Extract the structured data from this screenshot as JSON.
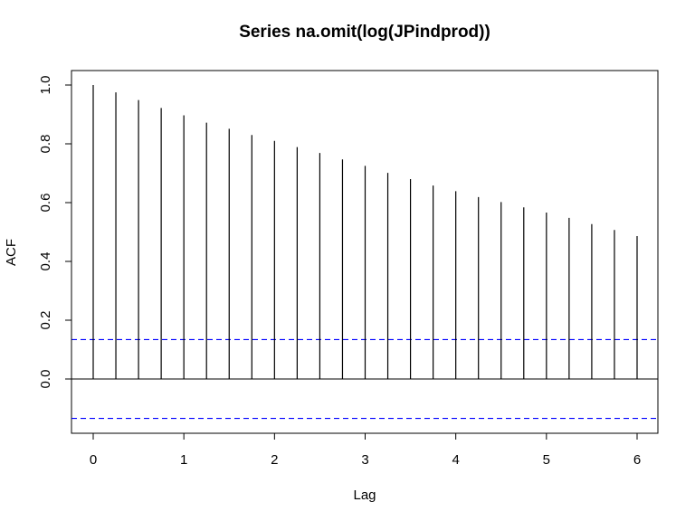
{
  "chart_data": {
    "type": "bar",
    "title": "Series  na.omit(log(JPindprod))",
    "xlabel": "Lag",
    "ylabel": "ACF",
    "xlim": [
      0,
      6
    ],
    "ylim": [
      -0.13,
      1.0
    ],
    "x_ticks": [
      "0",
      "1",
      "2",
      "3",
      "4",
      "5",
      "6"
    ],
    "y_ticks": [
      "0.0",
      "0.2",
      "0.4",
      "0.6",
      "0.8",
      "1.0"
    ],
    "lags": [
      0,
      0.25,
      0.5,
      0.75,
      1,
      1.25,
      1.5,
      1.75,
      2,
      2.25,
      2.5,
      2.75,
      3,
      3.25,
      3.5,
      3.75,
      4,
      4.25,
      4.5,
      4.75,
      5,
      5.25,
      5.5,
      5.75,
      6
    ],
    "values": [
      1.0,
      0.975,
      0.949,
      0.922,
      0.897,
      0.872,
      0.851,
      0.83,
      0.81,
      0.789,
      0.769,
      0.747,
      0.725,
      0.701,
      0.68,
      0.658,
      0.639,
      0.619,
      0.602,
      0.584,
      0.566,
      0.548,
      0.527,
      0.507,
      0.486
    ],
    "confidence_bounds": [
      0.134,
      -0.134
    ],
    "bound_color": "#0000ff",
    "grid": false
  }
}
